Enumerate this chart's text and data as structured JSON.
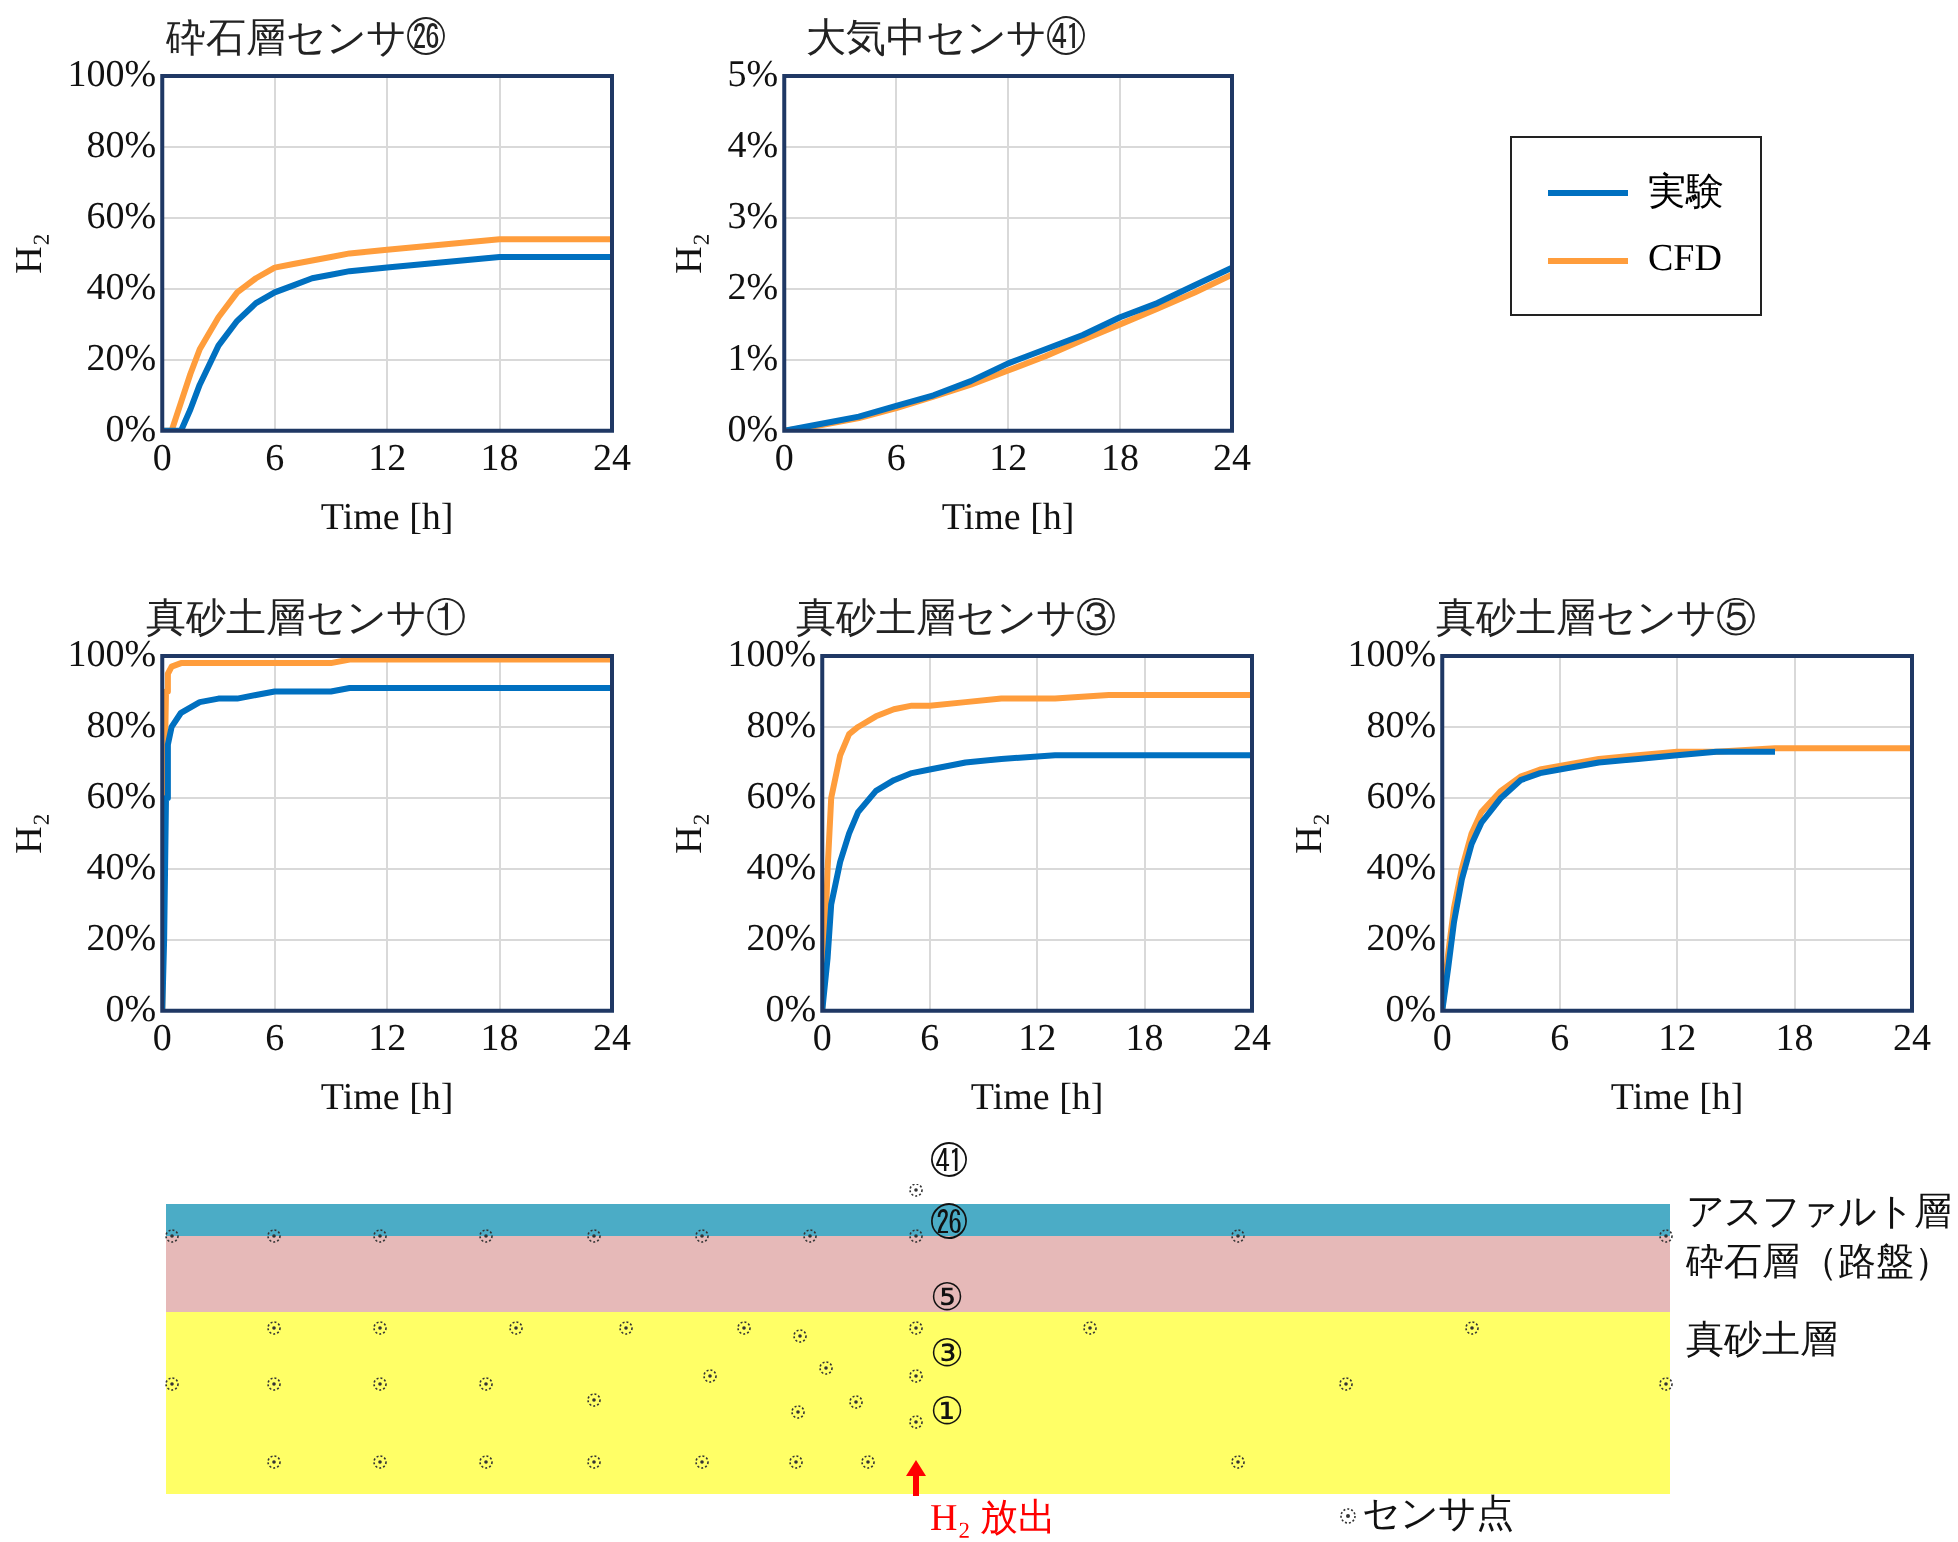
{
  "chart_data": [
    {
      "type": "line",
      "title": "砕石層センサ㉖",
      "xlabel": "Time [h]",
      "ylabel": "H₂",
      "x": [
        0,
        0.5,
        1,
        1.5,
        2,
        3,
        4,
        5,
        6,
        7,
        8,
        9,
        10,
        12,
        14,
        16,
        18,
        20,
        22,
        24
      ],
      "xlim": [
        0,
        24
      ],
      "xticks": [
        0,
        6,
        12,
        18,
        24
      ],
      "ylim": [
        0,
        100
      ],
      "yticks": [
        {
          "value": 0,
          "label": "0%"
        },
        {
          "value": 20,
          "label": "20%"
        },
        {
          "value": 40,
          "label": "40%"
        },
        {
          "value": 60,
          "label": "60%"
        },
        {
          "value": 80,
          "label": "80%"
        },
        {
          "value": 100,
          "label": "100%"
        }
      ],
      "grid": true,
      "marker": "none",
      "series": [
        {
          "color": "#0070c0",
          "values": [
            0,
            0,
            0,
            6,
            13,
            24,
            31,
            36,
            39,
            41,
            43,
            44,
            45,
            46,
            47,
            48,
            49,
            49,
            49,
            49
          ]
        },
        {
          "color": "#ff9d3c",
          "values": [
            0,
            0,
            8,
            16,
            23,
            32,
            39,
            43,
            46,
            47,
            48,
            49,
            50,
            51,
            52,
            53,
            54,
            54,
            54,
            54
          ]
        }
      ]
    },
    {
      "type": "line",
      "title": "大気中センサ㊶",
      "xlabel": "Time [h]",
      "ylabel": "H₂",
      "x": [
        0,
        2,
        4,
        6,
        8,
        10,
        12,
        14,
        16,
        18,
        20,
        22,
        24
      ],
      "xlim": [
        0,
        24
      ],
      "xticks": [
        0,
        6,
        12,
        18,
        24
      ],
      "ylim": [
        0,
        5
      ],
      "yticks": [
        {
          "value": 0,
          "label": "0%"
        },
        {
          "value": 1,
          "label": "1%"
        },
        {
          "value": 2,
          "label": "2%"
        },
        {
          "value": 3,
          "label": "3%"
        },
        {
          "value": 4,
          "label": "4%"
        },
        {
          "value": 5,
          "label": "5%"
        }
      ],
      "grid": true,
      "marker": "none",
      "legend": "right",
      "series": [
        {
          "name": "実験",
          "color": "#0070c0",
          "values": [
            0,
            0.1,
            0.2,
            0.35,
            0.5,
            0.7,
            0.95,
            1.15,
            1.35,
            1.6,
            1.8,
            2.05,
            2.3
          ]
        },
        {
          "name": "CFD",
          "color": "#ff9d3c",
          "values": [
            0,
            0.08,
            0.18,
            0.32,
            0.48,
            0.65,
            0.85,
            1.05,
            1.28,
            1.5,
            1.72,
            1.95,
            2.2
          ]
        }
      ]
    },
    {
      "type": "line",
      "title": "真砂土層センサ①",
      "xlabel": "Time [h]",
      "ylabel": "H₂",
      "x": [
        0,
        0.1,
        0.2,
        0.3,
        0.5,
        1,
        2,
        3,
        4,
        5,
        6,
        9,
        10,
        12,
        18,
        24
      ],
      "xlim": [
        0,
        24
      ],
      "xticks": [
        0,
        6,
        12,
        18,
        24
      ],
      "ylim": [
        0,
        100
      ],
      "yticks": [
        {
          "value": 0,
          "label": "0%"
        },
        {
          "value": 20,
          "label": "20%"
        },
        {
          "value": 40,
          "label": "40%"
        },
        {
          "value": 60,
          "label": "60%"
        },
        {
          "value": 80,
          "label": "80%"
        },
        {
          "value": 100,
          "label": "100%"
        }
      ],
      "grid": true,
      "marker": "none",
      "series": [
        {
          "color": "#0070c0",
          "values": [
            0,
            20,
            60,
            75,
            80,
            84,
            87,
            88,
            88,
            89,
            90,
            90,
            91,
            91,
            91,
            91
          ]
        },
        {
          "color": "#ff9d3c",
          "values": [
            0,
            60,
            90,
            95,
            97,
            98,
            98,
            98,
            98,
            98,
            98,
            98,
            99,
            99,
            99,
            99
          ]
        }
      ]
    },
    {
      "type": "line",
      "title": "真砂土層センサ③",
      "xlabel": "Time [h]",
      "ylabel": "H₂",
      "x": [
        0,
        0.3,
        0.5,
        1,
        1.5,
        2,
        3,
        4,
        5,
        6,
        8,
        10,
        13,
        16,
        24
      ],
      "xlim": [
        0,
        24
      ],
      "xticks": [
        0,
        6,
        12,
        18,
        24
      ],
      "ylim": [
        0,
        100
      ],
      "yticks": [
        {
          "value": 0,
          "label": "0%"
        },
        {
          "value": 20,
          "label": "20%"
        },
        {
          "value": 40,
          "label": "40%"
        },
        {
          "value": 60,
          "label": "60%"
        },
        {
          "value": 80,
          "label": "80%"
        },
        {
          "value": 100,
          "label": "100%"
        }
      ],
      "grid": true,
      "marker": "none",
      "series": [
        {
          "color": "#0070c0",
          "values": [
            0,
            15,
            30,
            42,
            50,
            56,
            62,
            65,
            67,
            68,
            70,
            71,
            72,
            72,
            72
          ]
        },
        {
          "color": "#ff9d3c",
          "values": [
            0,
            40,
            60,
            72,
            78,
            80,
            83,
            85,
            86,
            86,
            87,
            88,
            88,
            89,
            89
          ]
        }
      ]
    },
    {
      "type": "line",
      "title": "真砂土層センサ⑤",
      "xlabel": "Time [h]",
      "ylabel": "H₂",
      "x": [
        0,
        0.3,
        0.6,
        1,
        1.5,
        2,
        3,
        4,
        5,
        6,
        8,
        10,
        12,
        14,
        17,
        20,
        24
      ],
      "xlim": [
        0,
        24
      ],
      "xticks": [
        0,
        6,
        12,
        18,
        24
      ],
      "ylim": [
        0,
        100
      ],
      "yticks": [
        {
          "value": 0,
          "label": "0%"
        },
        {
          "value": 20,
          "label": "20%"
        },
        {
          "value": 40,
          "label": "40%"
        },
        {
          "value": 60,
          "label": "60%"
        },
        {
          "value": 80,
          "label": "80%"
        },
        {
          "value": 100,
          "label": "100%"
        }
      ],
      "grid": true,
      "marker": "none",
      "series": [
        {
          "color": "#0070c0",
          "values": [
            0,
            12,
            25,
            37,
            47,
            53,
            60,
            65,
            67,
            68,
            70,
            71,
            72,
            73,
            73,
            null,
            null
          ]
        },
        {
          "color": "#ff9d3c",
          "values": [
            0,
            16,
            29,
            40,
            50,
            56,
            62,
            66,
            68,
            69,
            71,
            72,
            73,
            73,
            74,
            74,
            74
          ]
        }
      ]
    },
    {
      "type": "other",
      "annotations": [
        "㊶",
        "㉖",
        "⑤",
        "③",
        "①",
        "アスファルト層",
        "砕石層（路盤）",
        "真砂土層",
        "H₂ 放出",
        "センサ点"
      ]
    }
  ]
}
